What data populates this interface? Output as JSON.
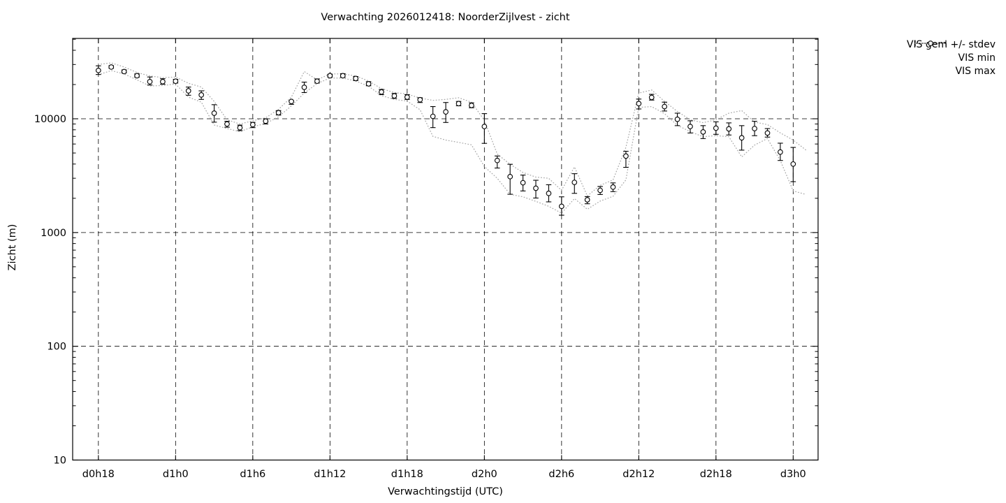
{
  "colors": {
    "axis": "#000000",
    "grid": "#000000",
    "dotted_line": "#a8a8a8",
    "marker_stroke": "#000000",
    "marker_fill": "#ffffff",
    "background": "#ffffff"
  },
  "chart_data": {
    "type": "line",
    "title": "Verwachting 2026012418: NoorderZijlvest - zicht",
    "xlabel": "Verwachtingstijd (UTC)",
    "ylabel": "Zicht (m)",
    "y_scale": "log",
    "ylim": [
      10,
      50000
    ],
    "y_tick_values": [
      10,
      100,
      1000,
      10000
    ],
    "y_tick_labels": [
      "10",
      "100",
      "1000",
      "10000"
    ],
    "x_tick_labels": [
      "d0h18",
      "d1h0",
      "d1h6",
      "d1h12",
      "d1h18",
      "d2h0",
      "d2h6",
      "d2h12",
      "d2h18",
      "d3h0"
    ],
    "x_tick_hours": [
      18,
      24,
      30,
      36,
      42,
      48,
      54,
      60,
      66,
      72
    ],
    "x_hour_start": 18,
    "x_hour_step": 1,
    "grid": "dashed-at-major-ticks",
    "legend_position": "outside-top-right",
    "series": [
      {
        "name": "VIS gem +/- stdev",
        "style": "points-with-errorbars",
        "marker": "open-circle",
        "mean": [
          26600,
          28500,
          26000,
          23900,
          21200,
          21200,
          21400,
          17600,
          16200,
          11200,
          9000,
          8350,
          8880,
          9530,
          11300,
          14200,
          18900,
          21400,
          23900,
          23900,
          22600,
          20300,
          17200,
          15900,
          15500,
          14700,
          10500,
          11500,
          13600,
          13100,
          8550,
          4300,
          3100,
          2740,
          2450,
          2210,
          1700,
          2760,
          1940,
          2350,
          2510,
          4700,
          13600,
          15400,
          12800,
          9900,
          8550,
          7660,
          8270,
          8150,
          6800,
          8200,
          7500,
          5100,
          4000
        ],
        "upper": [
          29200,
          29300,
          26900,
          24800,
          23300,
          22500,
          22200,
          19000,
          17600,
          13300,
          9500,
          8800,
          9300,
          10000,
          11800,
          14400,
          21000,
          22400,
          24600,
          24900,
          23500,
          21200,
          18100,
          16700,
          16300,
          15300,
          12800,
          13900,
          14200,
          13800,
          11100,
          4710,
          3980,
          3200,
          2880,
          2630,
          2060,
          3290,
          2070,
          2540,
          2730,
          5180,
          14900,
          16400,
          14000,
          11200,
          9600,
          8700,
          9400,
          9200,
          8700,
          9500,
          8200,
          6100,
          5600
        ],
        "lower": [
          24500,
          27800,
          25300,
          23200,
          19800,
          20100,
          20600,
          16100,
          14800,
          9340,
          8430,
          7870,
          8360,
          9000,
          10800,
          13400,
          17000,
          20600,
          23200,
          23100,
          21700,
          19500,
          16300,
          15100,
          14800,
          13900,
          8360,
          9280,
          13000,
          12500,
          6080,
          3690,
          2170,
          2320,
          2010,
          1860,
          1420,
          2210,
          1790,
          2160,
          2290,
          3740,
          12200,
          14600,
          11700,
          8700,
          7500,
          6700,
          7300,
          7200,
          5300,
          7100,
          6900,
          4300,
          2800
        ]
      },
      {
        "name": "VIS min",
        "style": "dotted-line",
        "values": [
          24400,
          26500,
          24800,
          22000,
          19400,
          19600,
          20200,
          15500,
          14000,
          8800,
          8200,
          7700,
          8500,
          9100,
          10400,
          13000,
          16800,
          20400,
          22800,
          22800,
          21500,
          19300,
          16000,
          14800,
          14300,
          12000,
          7000,
          6500,
          6200,
          5900,
          3800,
          3000,
          2170,
          2060,
          1880,
          1700,
          1480,
          1990,
          1600,
          1890,
          2080,
          2900,
          12600,
          12800,
          11100,
          8770,
          7700,
          6950,
          7100,
          6950,
          4620,
          5870,
          6700,
          4300,
          2320,
          2160
        ]
      },
      {
        "name": "VIS max",
        "style": "dotted-line",
        "values": [
          30000,
          31000,
          28500,
          25500,
          23800,
          23000,
          23300,
          20500,
          19000,
          14200,
          9800,
          9000,
          9600,
          10200,
          12100,
          15500,
          26000,
          22000,
          24800,
          24800,
          23800,
          21500,
          18400,
          17000,
          16500,
          15200,
          14500,
          14800,
          15300,
          14000,
          9700,
          4900,
          3980,
          3370,
          3070,
          3000,
          2350,
          3770,
          2100,
          2600,
          2900,
          5600,
          16800,
          17900,
          14200,
          11600,
          9800,
          9240,
          9800,
          11200,
          11800,
          9340,
          8900,
          7520,
          6500,
          5300
        ]
      }
    ]
  }
}
